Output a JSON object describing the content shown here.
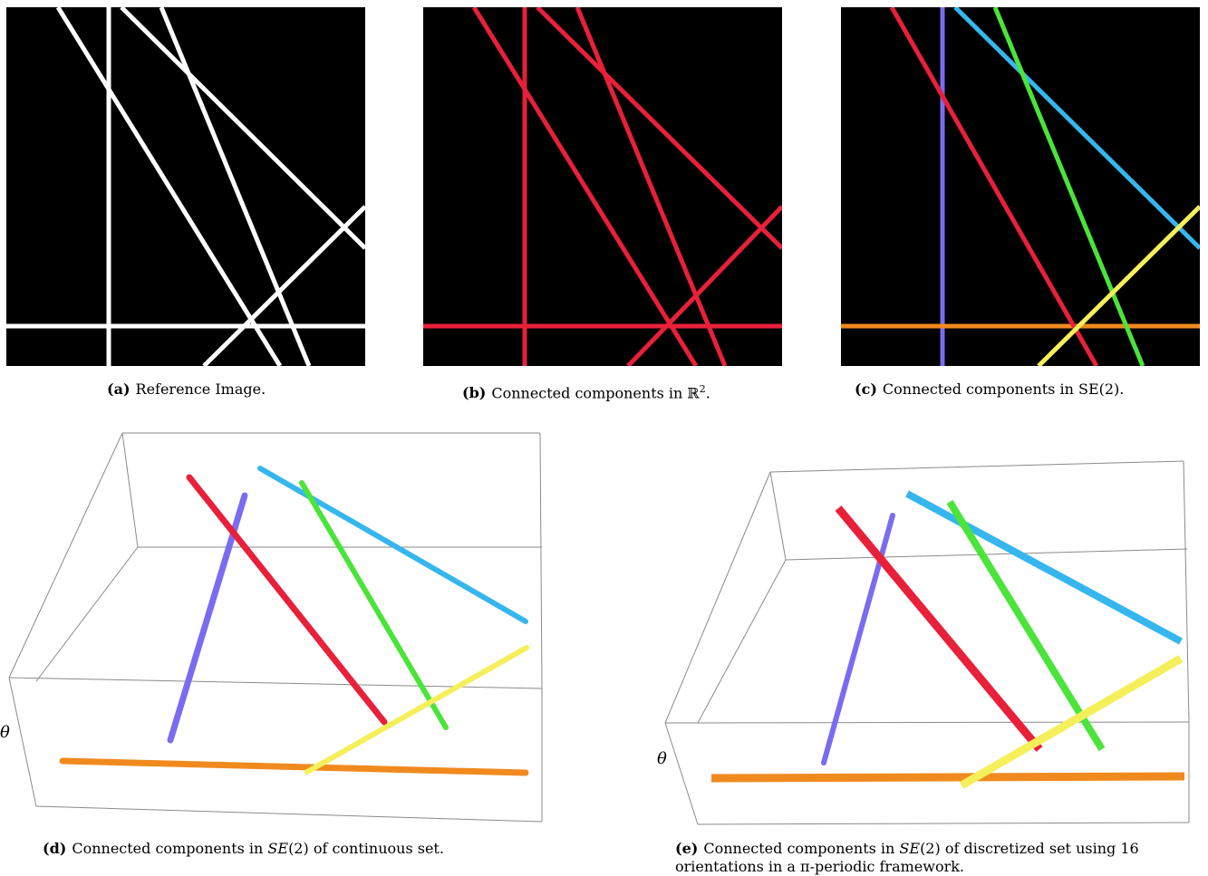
{
  "figure": {
    "panels": [
      {
        "id": "a",
        "label": "(a)",
        "caption": "Reference Image."
      },
      {
        "id": "b",
        "label": "(b)",
        "caption_pre": "Connected components in ",
        "caption_math": "ℝ",
        "caption_sup": "2",
        "caption_post": "."
      },
      {
        "id": "c",
        "label": "(c)",
        "caption": "Connected components in SE(2)."
      },
      {
        "id": "d",
        "label": "(d)",
        "caption_pre": "Connected components in ",
        "caption_math": "SE",
        "caption_post": "(2) of continuous set.",
        "axis_label": "θ"
      },
      {
        "id": "e",
        "label": "(e)",
        "caption_pre": "Connected components in ",
        "caption_math": "SE",
        "caption_post": "(2) of discretized set using 16",
        "caption_line2": "orientations in a π-periodic framework.",
        "axis_label": "θ"
      }
    ],
    "colors": {
      "white": "#ffffff",
      "red": "#e8203a",
      "purple": "#7a6cf0",
      "blue": "#36b6ee",
      "green": "#4ae43a",
      "yellow": "#f5ef5a",
      "orange": "#f08a1e"
    }
  }
}
